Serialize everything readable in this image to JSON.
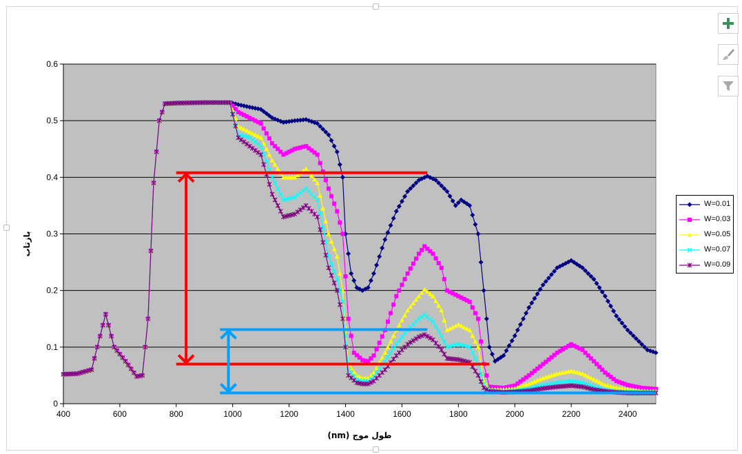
{
  "toolbar": {
    "add_icon": "plus-icon",
    "style_icon": "paintbrush-icon",
    "filter_icon": "filter-icon"
  },
  "chart_data": {
    "type": "line",
    "xlabel": "طول موج (nm)",
    "ylabel": "بازتاب",
    "xlim": [
      400,
      2500
    ],
    "ylim": [
      0,
      0.6
    ],
    "x_ticks": [
      400,
      600,
      800,
      1000,
      1200,
      1400,
      1600,
      1800,
      2000,
      2200,
      2400
    ],
    "y_ticks": [
      0,
      0.1,
      0.2,
      0.3,
      0.4,
      0.5,
      0.6
    ],
    "x_tick_labels": [
      "400",
      "600",
      "800",
      "1000",
      "1200",
      "1400",
      "1600",
      "1800",
      "2000",
      "2200",
      "2400"
    ],
    "y_tick_labels": [
      "0",
      "0.1",
      "0.2",
      "0.3",
      "0.4",
      "0.5",
      "0.6"
    ],
    "grid": "horizontal",
    "plot_background": "#c0c0c0",
    "legend_position": "right",
    "series": [
      {
        "name": "W=0.01",
        "color": "#000080",
        "marker": "diamond",
        "points": [
          [
            400,
            0.052
          ],
          [
            450,
            0.053
          ],
          [
            500,
            0.06
          ],
          [
            520,
            0.1
          ],
          [
            550,
            0.158
          ],
          [
            580,
            0.1
          ],
          [
            620,
            0.075
          ],
          [
            660,
            0.048
          ],
          [
            680,
            0.05
          ],
          [
            700,
            0.15
          ],
          [
            720,
            0.39
          ],
          [
            740,
            0.5
          ],
          [
            760,
            0.53
          ],
          [
            800,
            0.531
          ],
          [
            900,
            0.532
          ],
          [
            990,
            0.532
          ],
          [
            1050,
            0.525
          ],
          [
            1100,
            0.52
          ],
          [
            1140,
            0.505
          ],
          [
            1180,
            0.497
          ],
          [
            1220,
            0.5
          ],
          [
            1260,
            0.502
          ],
          [
            1300,
            0.495
          ],
          [
            1340,
            0.475
          ],
          [
            1370,
            0.445
          ],
          [
            1390,
            0.4
          ],
          [
            1400,
            0.3
          ],
          [
            1420,
            0.23
          ],
          [
            1440,
            0.205
          ],
          [
            1460,
            0.2
          ],
          [
            1480,
            0.205
          ],
          [
            1500,
            0.23
          ],
          [
            1540,
            0.29
          ],
          [
            1580,
            0.34
          ],
          [
            1620,
            0.375
          ],
          [
            1660,
            0.395
          ],
          [
            1690,
            0.402
          ],
          [
            1720,
            0.395
          ],
          [
            1760,
            0.375
          ],
          [
            1790,
            0.35
          ],
          [
            1810,
            0.36
          ],
          [
            1840,
            0.35
          ],
          [
            1870,
            0.3
          ],
          [
            1890,
            0.2
          ],
          [
            1910,
            0.1
          ],
          [
            1930,
            0.075
          ],
          [
            1960,
            0.085
          ],
          [
            2000,
            0.12
          ],
          [
            2050,
            0.17
          ],
          [
            2100,
            0.21
          ],
          [
            2150,
            0.24
          ],
          [
            2200,
            0.253
          ],
          [
            2240,
            0.24
          ],
          [
            2280,
            0.22
          ],
          [
            2320,
            0.19
          ],
          [
            2360,
            0.155
          ],
          [
            2400,
            0.13
          ],
          [
            2440,
            0.11
          ],
          [
            2470,
            0.095
          ],
          [
            2500,
            0.09
          ]
        ]
      },
      {
        "name": "W=0.03",
        "color": "#ff00ff",
        "marker": "square",
        "points": [
          [
            400,
            0.052
          ],
          [
            450,
            0.053
          ],
          [
            500,
            0.06
          ],
          [
            520,
            0.1
          ],
          [
            550,
            0.158
          ],
          [
            580,
            0.1
          ],
          [
            620,
            0.075
          ],
          [
            660,
            0.048
          ],
          [
            680,
            0.05
          ],
          [
            700,
            0.15
          ],
          [
            720,
            0.39
          ],
          [
            740,
            0.5
          ],
          [
            760,
            0.53
          ],
          [
            800,
            0.531
          ],
          [
            900,
            0.532
          ],
          [
            990,
            0.532
          ],
          [
            1020,
            0.515
          ],
          [
            1060,
            0.505
          ],
          [
            1100,
            0.495
          ],
          [
            1140,
            0.46
          ],
          [
            1180,
            0.44
          ],
          [
            1220,
            0.45
          ],
          [
            1260,
            0.455
          ],
          [
            1300,
            0.44
          ],
          [
            1340,
            0.38
          ],
          [
            1370,
            0.34
          ],
          [
            1390,
            0.3
          ],
          [
            1410,
            0.15
          ],
          [
            1430,
            0.09
          ],
          [
            1460,
            0.077
          ],
          [
            1480,
            0.075
          ],
          [
            1500,
            0.085
          ],
          [
            1540,
            0.13
          ],
          [
            1580,
            0.19
          ],
          [
            1620,
            0.23
          ],
          [
            1660,
            0.265
          ],
          [
            1680,
            0.278
          ],
          [
            1710,
            0.265
          ],
          [
            1740,
            0.24
          ],
          [
            1760,
            0.2
          ],
          [
            1800,
            0.19
          ],
          [
            1840,
            0.18
          ],
          [
            1870,
            0.15
          ],
          [
            1890,
            0.07
          ],
          [
            1910,
            0.03
          ],
          [
            1960,
            0.028
          ],
          [
            2000,
            0.032
          ],
          [
            2050,
            0.05
          ],
          [
            2100,
            0.07
          ],
          [
            2150,
            0.09
          ],
          [
            2200,
            0.105
          ],
          [
            2240,
            0.095
          ],
          [
            2280,
            0.075
          ],
          [
            2320,
            0.055
          ],
          [
            2360,
            0.04
          ],
          [
            2400,
            0.033
          ],
          [
            2450,
            0.028
          ],
          [
            2500,
            0.026
          ]
        ]
      },
      {
        "name": "W=0.05",
        "color": "#ffff00",
        "marker": "triangle",
        "points": [
          [
            400,
            0.052
          ],
          [
            450,
            0.053
          ],
          [
            500,
            0.06
          ],
          [
            520,
            0.1
          ],
          [
            550,
            0.158
          ],
          [
            580,
            0.1
          ],
          [
            620,
            0.075
          ],
          [
            660,
            0.048
          ],
          [
            680,
            0.05
          ],
          [
            700,
            0.15
          ],
          [
            720,
            0.39
          ],
          [
            740,
            0.5
          ],
          [
            760,
            0.53
          ],
          [
            800,
            0.531
          ],
          [
            900,
            0.532
          ],
          [
            990,
            0.532
          ],
          [
            1020,
            0.49
          ],
          [
            1060,
            0.48
          ],
          [
            1100,
            0.47
          ],
          [
            1140,
            0.43
          ],
          [
            1180,
            0.4
          ],
          [
            1220,
            0.4
          ],
          [
            1260,
            0.415
          ],
          [
            1300,
            0.39
          ],
          [
            1340,
            0.3
          ],
          [
            1370,
            0.26
          ],
          [
            1390,
            0.2
          ],
          [
            1410,
            0.07
          ],
          [
            1440,
            0.05
          ],
          [
            1460,
            0.045
          ],
          [
            1480,
            0.045
          ],
          [
            1500,
            0.055
          ],
          [
            1540,
            0.09
          ],
          [
            1580,
            0.13
          ],
          [
            1620,
            0.165
          ],
          [
            1660,
            0.19
          ],
          [
            1680,
            0.202
          ],
          [
            1710,
            0.19
          ],
          [
            1740,
            0.165
          ],
          [
            1760,
            0.13
          ],
          [
            1800,
            0.14
          ],
          [
            1840,
            0.13
          ],
          [
            1870,
            0.1
          ],
          [
            1890,
            0.04
          ],
          [
            1910,
            0.025
          ],
          [
            1960,
            0.025
          ],
          [
            2000,
            0.027
          ],
          [
            2050,
            0.035
          ],
          [
            2100,
            0.045
          ],
          [
            2150,
            0.053
          ],
          [
            2200,
            0.058
          ],
          [
            2240,
            0.053
          ],
          [
            2280,
            0.043
          ],
          [
            2320,
            0.033
          ],
          [
            2360,
            0.028
          ],
          [
            2400,
            0.025
          ],
          [
            2450,
            0.023
          ],
          [
            2500,
            0.022
          ]
        ]
      },
      {
        "name": "W=0.07",
        "color": "#00ffff",
        "marker": "x",
        "points": [
          [
            400,
            0.052
          ],
          [
            450,
            0.053
          ],
          [
            500,
            0.06
          ],
          [
            520,
            0.1
          ],
          [
            550,
            0.158
          ],
          [
            580,
            0.1
          ],
          [
            620,
            0.075
          ],
          [
            660,
            0.048
          ],
          [
            680,
            0.05
          ],
          [
            700,
            0.15
          ],
          [
            720,
            0.39
          ],
          [
            740,
            0.5
          ],
          [
            760,
            0.53
          ],
          [
            800,
            0.531
          ],
          [
            900,
            0.532
          ],
          [
            990,
            0.532
          ],
          [
            1020,
            0.475
          ],
          [
            1060,
            0.47
          ],
          [
            1100,
            0.455
          ],
          [
            1140,
            0.4
          ],
          [
            1180,
            0.36
          ],
          [
            1220,
            0.365
          ],
          [
            1260,
            0.38
          ],
          [
            1300,
            0.36
          ],
          [
            1340,
            0.26
          ],
          [
            1370,
            0.22
          ],
          [
            1390,
            0.18
          ],
          [
            1410,
            0.06
          ],
          [
            1440,
            0.042
          ],
          [
            1460,
            0.04
          ],
          [
            1480,
            0.04
          ],
          [
            1500,
            0.048
          ],
          [
            1540,
            0.075
          ],
          [
            1580,
            0.105
          ],
          [
            1620,
            0.13
          ],
          [
            1660,
            0.15
          ],
          [
            1680,
            0.157
          ],
          [
            1710,
            0.145
          ],
          [
            1740,
            0.12
          ],
          [
            1760,
            0.1
          ],
          [
            1800,
            0.105
          ],
          [
            1840,
            0.1
          ],
          [
            1870,
            0.07
          ],
          [
            1890,
            0.035
          ],
          [
            1910,
            0.023
          ],
          [
            1960,
            0.022
          ],
          [
            2000,
            0.023
          ],
          [
            2050,
            0.027
          ],
          [
            2100,
            0.033
          ],
          [
            2150,
            0.037
          ],
          [
            2200,
            0.04
          ],
          [
            2240,
            0.037
          ],
          [
            2280,
            0.03
          ],
          [
            2320,
            0.025
          ],
          [
            2360,
            0.022
          ],
          [
            2400,
            0.021
          ],
          [
            2450,
            0.02
          ],
          [
            2500,
            0.02
          ]
        ]
      },
      {
        "name": "W=0.09",
        "color": "#800080",
        "marker": "asterisk",
        "points": [
          [
            400,
            0.052
          ],
          [
            450,
            0.053
          ],
          [
            500,
            0.06
          ],
          [
            520,
            0.1
          ],
          [
            550,
            0.158
          ],
          [
            580,
            0.1
          ],
          [
            620,
            0.075
          ],
          [
            660,
            0.048
          ],
          [
            680,
            0.05
          ],
          [
            700,
            0.15
          ],
          [
            720,
            0.39
          ],
          [
            740,
            0.5
          ],
          [
            760,
            0.53
          ],
          [
            800,
            0.531
          ],
          [
            900,
            0.532
          ],
          [
            990,
            0.532
          ],
          [
            1020,
            0.47
          ],
          [
            1060,
            0.455
          ],
          [
            1100,
            0.44
          ],
          [
            1140,
            0.37
          ],
          [
            1180,
            0.33
          ],
          [
            1220,
            0.335
          ],
          [
            1260,
            0.35
          ],
          [
            1300,
            0.33
          ],
          [
            1340,
            0.24
          ],
          [
            1370,
            0.2
          ],
          [
            1390,
            0.15
          ],
          [
            1410,
            0.05
          ],
          [
            1440,
            0.037
          ],
          [
            1460,
            0.035
          ],
          [
            1480,
            0.035
          ],
          [
            1500,
            0.04
          ],
          [
            1540,
            0.06
          ],
          [
            1580,
            0.085
          ],
          [
            1620,
            0.105
          ],
          [
            1660,
            0.118
          ],
          [
            1680,
            0.122
          ],
          [
            1710,
            0.113
          ],
          [
            1740,
            0.095
          ],
          [
            1760,
            0.08
          ],
          [
            1800,
            0.078
          ],
          [
            1840,
            0.073
          ],
          [
            1870,
            0.05
          ],
          [
            1890,
            0.028
          ],
          [
            1910,
            0.022
          ],
          [
            1960,
            0.02
          ],
          [
            2000,
            0.021
          ],
          [
            2050,
            0.023
          ],
          [
            2100,
            0.027
          ],
          [
            2150,
            0.03
          ],
          [
            2200,
            0.032
          ],
          [
            2240,
            0.03
          ],
          [
            2280,
            0.025
          ],
          [
            2320,
            0.022
          ],
          [
            2360,
            0.02
          ],
          [
            2400,
            0.019
          ],
          [
            2450,
            0.019
          ],
          [
            2500,
            0.019
          ]
        ]
      }
    ],
    "annotations": [
      {
        "kind": "hline",
        "color": "#ff0000",
        "y": 0.408,
        "x1": 800,
        "x2": 1690
      },
      {
        "kind": "hline",
        "color": "#ff0000",
        "y": 0.07,
        "x1": 800,
        "x2": 1910
      },
      {
        "kind": "double-arrow",
        "color": "#ff0000",
        "x": 835,
        "y1": 0.408,
        "y2": 0.07
      },
      {
        "kind": "hline",
        "color": "#00a0ff",
        "y": 0.131,
        "x1": 955,
        "x2": 1690
      },
      {
        "kind": "hline",
        "color": "#00a0ff",
        "y": 0.019,
        "x1": 955,
        "x2": 2500
      },
      {
        "kind": "double-arrow",
        "color": "#00a0ff",
        "x": 985,
        "y1": 0.131,
        "y2": 0.019
      }
    ]
  }
}
